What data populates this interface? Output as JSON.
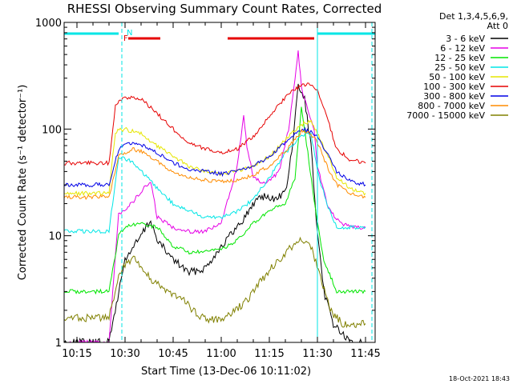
{
  "chart_data": {
    "type": "line",
    "title": "RHESSI Observing Summary Count Rates, Corrected",
    "xlabel": "Start Time (13-Dec-06 10:11:02)",
    "ylabel": "Corrected Count Rate (s⁻¹ detector⁻¹)",
    "y_scale": "log",
    "ylim": [
      1,
      1000
    ],
    "xlim": [
      "10:11",
      "11:48"
    ],
    "x_ticks": [
      "10:15",
      "10:30",
      "10:45",
      "11:00",
      "11:15",
      "11:30",
      "11:45"
    ],
    "y_ticks": [
      "1",
      "10",
      "100",
      "1000"
    ],
    "legend_header": [
      "Det 1,3,4,5,6,9,",
      "Att 0"
    ],
    "legend_position": "right",
    "series": [
      {
        "name": "3 - 6 keV",
        "color": "#000000",
        "x": [
          "10:11",
          "10:25",
          "10:30",
          "10:35",
          "10:38",
          "10:40",
          "10:45",
          "10:50",
          "10:55",
          "11:00",
          "11:05",
          "11:08",
          "11:12",
          "11:16",
          "11:20",
          "11:22",
          "11:24",
          "11:26",
          "11:28",
          "11:30",
          "11:32",
          "11:35",
          "11:40",
          "11:45"
        ],
        "values": [
          1,
          1,
          6,
          10,
          14,
          9,
          6,
          4.5,
          5,
          8,
          12,
          16,
          24,
          22,
          25,
          60,
          250,
          190,
          70,
          10,
          3,
          1.5,
          1,
          1
        ]
      },
      {
        "name": "6 - 12 keV",
        "color": "#e600e6",
        "x": [
          "10:11",
          "10:25",
          "10:28",
          "10:32",
          "10:36",
          "10:38",
          "10:40",
          "10:45",
          "10:50",
          "10:55",
          "11:00",
          "11:05",
          "11:07",
          "11:08",
          "11:10",
          "11:14",
          "11:18",
          "11:21",
          "11:23",
          "11:24",
          "11:25",
          "11:27",
          "11:29",
          "11:30",
          "11:33",
          "11:36",
          "11:40",
          "11:45"
        ],
        "values": [
          1,
          1,
          16,
          20,
          28,
          32,
          15,
          12,
          11,
          11,
          13,
          45,
          130,
          70,
          35,
          30,
          40,
          100,
          300,
          540,
          250,
          150,
          100,
          45,
          20,
          14,
          12,
          12
        ]
      },
      {
        "name": "12 - 25 keV",
        "color": "#00e600",
        "x": [
          "10:11",
          "10:25",
          "10:28",
          "10:30",
          "10:35",
          "10:40",
          "10:45",
          "10:50",
          "10:55",
          "11:00",
          "11:05",
          "11:10",
          "11:15",
          "11:20",
          "11:23",
          "11:25",
          "11:27",
          "11:30",
          "11:32",
          "11:36",
          "11:40",
          "11:45"
        ],
        "values": [
          3,
          3,
          10,
          12,
          13,
          12,
          8,
          7,
          7,
          7.5,
          9,
          13,
          17,
          20,
          35,
          160,
          60,
          13,
          6,
          3,
          3,
          3
        ]
      },
      {
        "name": "25 - 50 keV",
        "color": "#00e6e6",
        "x": [
          "10:11",
          "10:25",
          "10:28",
          "10:32",
          "10:35",
          "10:40",
          "10:45",
          "10:50",
          "10:55",
          "11:00",
          "11:05",
          "11:10",
          "11:15",
          "11:20",
          "11:25",
          "11:28",
          "11:30",
          "11:33",
          "11:36",
          "11:40",
          "11:45"
        ],
        "values": [
          11,
          11,
          55,
          50,
          40,
          28,
          20,
          17,
          15,
          15,
          17,
          22,
          35,
          60,
          85,
          90,
          40,
          20,
          12,
          12,
          12
        ]
      },
      {
        "name": "50 - 100 keV",
        "color": "#e6e600",
        "x": [
          "10:11",
          "10:25",
          "10:27",
          "10:30",
          "10:35",
          "10:40",
          "10:45",
          "10:50",
          "10:55",
          "11:00",
          "11:05",
          "11:10",
          "11:15",
          "11:20",
          "11:25",
          "11:28",
          "11:30",
          "11:33",
          "11:36",
          "11:40",
          "11:45"
        ],
        "values": [
          25,
          25,
          95,
          100,
          90,
          70,
          55,
          45,
          40,
          38,
          40,
          45,
          55,
          80,
          110,
          120,
          90,
          60,
          35,
          28,
          25
        ]
      },
      {
        "name": "100 - 300 keV",
        "color": "#e60000",
        "x": [
          "10:11",
          "10:25",
          "10:27",
          "10:30",
          "10:35",
          "10:40",
          "10:45",
          "10:50",
          "10:55",
          "11:00",
          "11:05",
          "11:10",
          "11:15",
          "11:20",
          "11:25",
          "11:28",
          "11:30",
          "11:33",
          "11:36",
          "11:40",
          "11:45"
        ],
        "values": [
          48,
          48,
          170,
          200,
          190,
          140,
          100,
          75,
          65,
          60,
          65,
          85,
          130,
          200,
          260,
          260,
          230,
          130,
          65,
          52,
          48
        ]
      },
      {
        "name": "300 - 800 keV",
        "color": "#0000e6",
        "x": [
          "10:11",
          "10:25",
          "10:28",
          "10:32",
          "10:35",
          "10:40",
          "10:45",
          "10:50",
          "10:55",
          "11:00",
          "11:05",
          "11:10",
          "11:15",
          "11:20",
          "11:25",
          "11:28",
          "11:30",
          "11:33",
          "11:36",
          "11:40",
          "11:45"
        ],
        "values": [
          30,
          30,
          65,
          75,
          72,
          60,
          48,
          42,
          40,
          38,
          40,
          45,
          55,
          75,
          100,
          95,
          85,
          60,
          40,
          33,
          30
        ]
      },
      {
        "name": "800 - 7000 keV",
        "color": "#ff8c00",
        "x": [
          "10:11",
          "10:25",
          "10:28",
          "10:32",
          "10:35",
          "10:40",
          "10:45",
          "10:50",
          "10:55",
          "11:00",
          "11:05",
          "11:10",
          "11:15",
          "11:20",
          "11:25",
          "11:28",
          "11:30",
          "11:33",
          "11:36",
          "11:40",
          "11:45"
        ],
        "values": [
          23,
          23,
          55,
          65,
          62,
          50,
          40,
          35,
          33,
          32,
          33,
          37,
          45,
          62,
          95,
          90,
          75,
          45,
          30,
          25,
          23
        ]
      },
      {
        "name": "7000 - 15000 keV",
        "color": "#808000",
        "x": [
          "10:11",
          "10:25",
          "10:28",
          "10:30",
          "10:33",
          "10:38",
          "10:43",
          "10:48",
          "10:53",
          "10:58",
          "11:03",
          "11:08",
          "11:13",
          "11:18",
          "11:22",
          "11:25",
          "11:28",
          "11:31",
          "11:34",
          "11:38",
          "11:42",
          "11:45"
        ],
        "values": [
          1.7,
          1.7,
          4,
          5.5,
          6,
          4,
          3,
          2.5,
          1.8,
          1.6,
          1.8,
          2.5,
          4,
          6,
          8,
          9.5,
          8,
          4,
          2,
          1.5,
          1.5,
          1.5
        ]
      }
    ],
    "annotations": {
      "attenuator_bars": [
        {
          "label": "",
          "color": "#00e6e6",
          "x_start": "10:11",
          "x_end": "10:28"
        },
        {
          "label": "",
          "color": "#00e6e6",
          "x_start": "11:30",
          "x_end": "11:48"
        }
      ],
      "flag_bars": [
        {
          "label": "",
          "color": "#e60000",
          "x_start": "10:31",
          "x_end": "10:41"
        },
        {
          "label": "",
          "color": "#e60000",
          "x_start": "11:02",
          "x_end": "11:29"
        }
      ],
      "markers": [
        {
          "label": "N",
          "color": "#00e6e6",
          "x": "10:30"
        },
        {
          "label": "F",
          "color": "#e60000",
          "x": "10:29"
        }
      ],
      "vertical_lines": [
        {
          "x": "10:29",
          "color": "#00e6e6",
          "style": "dashed"
        },
        {
          "x": "11:30",
          "color": "#00e6e6",
          "style": "solid"
        },
        {
          "x": "11:47",
          "color": "#00e6e6",
          "style": "dashed"
        }
      ]
    },
    "timestamp": "18-Oct-2021 18:43"
  }
}
